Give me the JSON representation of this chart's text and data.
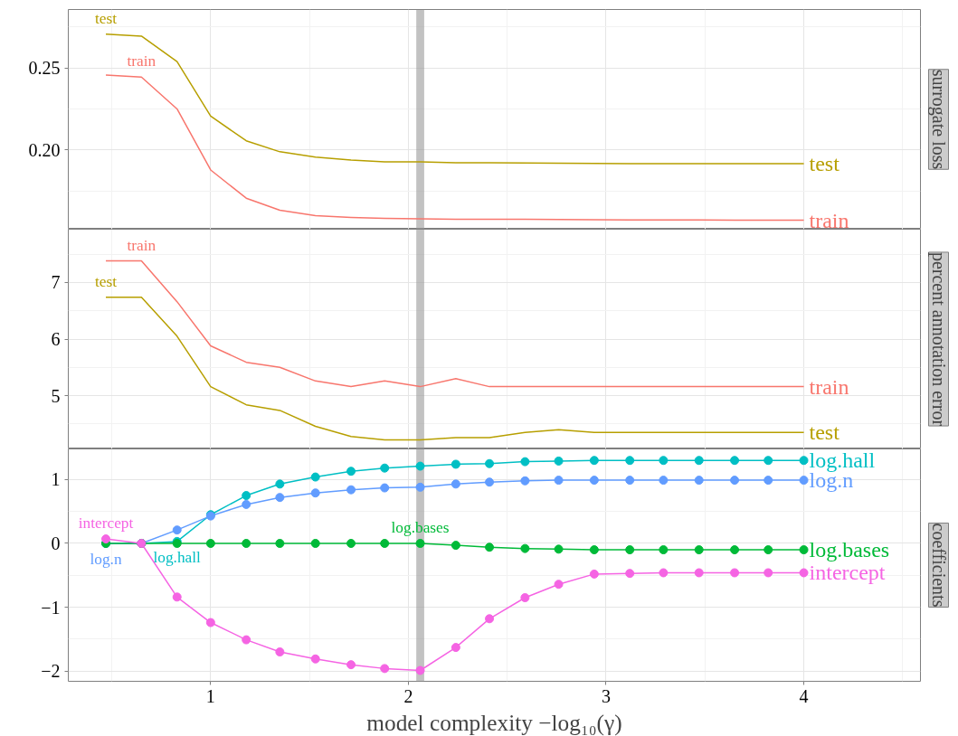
{
  "chart_data": [
    {
      "type": "line",
      "title": "surrogate loss",
      "tick_labels": "y",
      "grid": true,
      "marker": "none",
      "line_style": "solid",
      "x": [
        0.47,
        0.65,
        0.83,
        1.0,
        1.18,
        1.35,
        1.53,
        1.71,
        1.88,
        2.06,
        2.24,
        2.41,
        2.59,
        2.76,
        2.94,
        3.12,
        3.29,
        3.47,
        3.65,
        3.82,
        4.0
      ],
      "xlim": [
        0.28,
        4.59
      ],
      "xticks": [
        1,
        2,
        3,
        4
      ],
      "ylim": [
        0.1517,
        0.2856
      ],
      "yticks": [
        {
          "value": 0.2,
          "label": "0.20"
        },
        {
          "value": 0.25,
          "label": "0.25"
        }
      ],
      "series": [
        {
          "name": "test",
          "color": "#b79f00",
          "values": [
            0.2706,
            0.2694,
            0.2539,
            0.2206,
            0.2056,
            0.1989,
            0.1956,
            0.1939,
            0.1928,
            0.1928,
            0.1922,
            0.1922,
            0.192,
            0.1919,
            0.1918,
            0.1917,
            0.1917,
            0.1917,
            0.1917,
            0.1917,
            0.1917
          ]
        },
        {
          "name": "train",
          "color": "#f8766d",
          "values": [
            0.2456,
            0.2444,
            0.225,
            0.1878,
            0.1706,
            0.1633,
            0.16,
            0.1589,
            0.1583,
            0.1581,
            0.1578,
            0.1578,
            0.1577,
            0.1576,
            0.1575,
            0.1574,
            0.1573,
            0.1573,
            0.1572,
            0.1572,
            0.1572
          ]
        }
      ],
      "annotations": [
        {
          "text": "test",
          "x": 0.47,
          "y": 0.2706
        },
        {
          "text": "train",
          "x": 0.65,
          "y": 0.2444
        }
      ],
      "bands": [
        {
          "axis": "x",
          "from": 2.04,
          "to": 2.08,
          "color": "#999999"
        }
      ]
    },
    {
      "type": "line",
      "title": "percent annotation error",
      "tick_labels": "y",
      "grid": true,
      "marker": "none",
      "line_style": "solid",
      "x": [
        0.47,
        0.65,
        0.83,
        1.0,
        1.18,
        1.35,
        1.53,
        1.71,
        1.88,
        2.06,
        2.24,
        2.41,
        2.59,
        2.76,
        2.94,
        3.12,
        3.29,
        3.47,
        3.65,
        3.82,
        4.0
      ],
      "xlim": [
        0.28,
        4.59
      ],
      "xticks": [
        1,
        2,
        3,
        4
      ],
      "ylim": [
        4.06,
        7.94
      ],
      "yticks": [
        5,
        6,
        7
      ],
      "series": [
        {
          "name": "train",
          "color": "#f8766d",
          "values": [
            7.38,
            7.38,
            6.66,
            5.88,
            5.59,
            5.5,
            5.26,
            5.16,
            5.26,
            5.16,
            5.3,
            5.16,
            5.16,
            5.16,
            5.16,
            5.16,
            5.16,
            5.16,
            5.16,
            5.16,
            5.16
          ]
        },
        {
          "name": "test",
          "color": "#b79f00",
          "values": [
            6.74,
            6.74,
            6.05,
            5.16,
            4.84,
            4.74,
            4.46,
            4.28,
            4.22,
            4.22,
            4.26,
            4.26,
            4.35,
            4.4,
            4.35,
            4.35,
            4.35,
            4.35,
            4.35,
            4.35,
            4.35
          ]
        }
      ],
      "annotations": [
        {
          "text": "train",
          "x": 0.65,
          "y": 7.38
        },
        {
          "text": "test",
          "x": 0.47,
          "y": 6.74
        }
      ],
      "bands": [
        {
          "axis": "x",
          "from": 2.04,
          "to": 2.08,
          "color": "#999999"
        }
      ]
    },
    {
      "type": "line",
      "title": "coefficients",
      "xlabel": "model complexity −log₁₀(γ)",
      "grid": true,
      "marker": "circle",
      "line_style": "solid",
      "x": [
        0.47,
        0.65,
        0.83,
        1.0,
        1.18,
        1.35,
        1.53,
        1.71,
        1.88,
        2.06,
        2.24,
        2.41,
        2.59,
        2.76,
        2.94,
        3.12,
        3.29,
        3.47,
        3.65,
        3.82,
        4.0
      ],
      "xlim": [
        0.28,
        4.59
      ],
      "xticks": [
        1,
        2,
        3,
        4
      ],
      "ylim": [
        -2.16,
        1.48
      ],
      "yticks": [
        -2,
        -1,
        0,
        1
      ],
      "series": [
        {
          "name": "log.hall",
          "color": "#00bfc4",
          "values": [
            0,
            0,
            0.03,
            0.45,
            0.75,
            0.93,
            1.04,
            1.13,
            1.18,
            1.21,
            1.24,
            1.25,
            1.28,
            1.29,
            1.3,
            1.3,
            1.3,
            1.3,
            1.3,
            1.3,
            1.3
          ]
        },
        {
          "name": "log.n",
          "color": "#619cff",
          "values": [
            0,
            0,
            0.21,
            0.43,
            0.61,
            0.72,
            0.79,
            0.84,
            0.87,
            0.88,
            0.93,
            0.96,
            0.98,
            0.99,
            0.99,
            0.99,
            0.99,
            0.99,
            0.99,
            0.99,
            0.99
          ]
        },
        {
          "name": "log.bases",
          "color": "#00ba38",
          "values": [
            0,
            0,
            0,
            0,
            0,
            0,
            0,
            0,
            0,
            0,
            -0.03,
            -0.06,
            -0.08,
            -0.09,
            -0.1,
            -0.1,
            -0.1,
            -0.1,
            -0.1,
            -0.1,
            -0.1
          ]
        },
        {
          "name": "intercept",
          "color": "#f564e3",
          "values": [
            0.07,
            0,
            -0.84,
            -1.24,
            -1.51,
            -1.7,
            -1.81,
            -1.9,
            -1.96,
            -1.99,
            -1.63,
            -1.18,
            -0.85,
            -0.64,
            -0.48,
            -0.47,
            -0.46,
            -0.46,
            -0.46,
            -0.46,
            -0.46
          ]
        }
      ],
      "annotations": [
        {
          "text": "intercept",
          "x": 0.47,
          "y": 0.07
        },
        {
          "text": "log.n",
          "x": 0.47,
          "y": 0
        },
        {
          "text": "log.hall",
          "x": 0.83,
          "y": 0.03
        },
        {
          "text": "log.bases",
          "x": 2.06,
          "y": 0
        }
      ],
      "bands": [
        {
          "axis": "x",
          "from": 2.04,
          "to": 2.08,
          "color": "#999999"
        }
      ]
    }
  ]
}
